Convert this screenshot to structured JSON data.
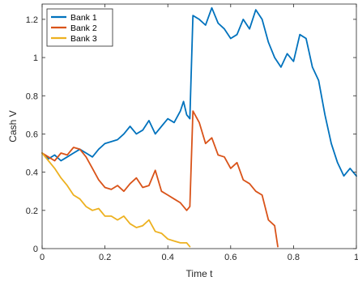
{
  "chart_data": {
    "type": "line",
    "title": "",
    "xlabel": "Time t",
    "ylabel": "Cash V",
    "xlim": [
      0,
      1
    ],
    "ylim": [
      0,
      1.28
    ],
    "x_ticks": [
      0,
      0.2,
      0.4,
      0.6,
      0.8,
      1
    ],
    "x_tick_labels": [
      "0",
      "0.2",
      "0.4",
      "0.6",
      "0.8",
      "1"
    ],
    "y_ticks": [
      0,
      0.2,
      0.4,
      0.6,
      0.8,
      1,
      1.2
    ],
    "y_tick_labels": [
      "0",
      "0.2",
      "0.4",
      "0.6",
      "0.8",
      "1",
      "1.2"
    ],
    "grid": false,
    "legend_position": "top-left",
    "series": [
      {
        "name": "Bank 1",
        "color": "#0072BD",
        "x": [
          0,
          0.02,
          0.04,
          0.06,
          0.08,
          0.1,
          0.12,
          0.14,
          0.16,
          0.18,
          0.2,
          0.22,
          0.24,
          0.26,
          0.28,
          0.3,
          0.32,
          0.34,
          0.36,
          0.38,
          0.4,
          0.42,
          0.44,
          0.45,
          0.46,
          0.47,
          0.48,
          0.5,
          0.52,
          0.54,
          0.56,
          0.58,
          0.6,
          0.62,
          0.64,
          0.66,
          0.68,
          0.7,
          0.72,
          0.74,
          0.76,
          0.78,
          0.8,
          0.82,
          0.84,
          0.86,
          0.88,
          0.9,
          0.92,
          0.94,
          0.96,
          0.98,
          1.0
        ],
        "values": [
          0.5,
          0.47,
          0.49,
          0.46,
          0.48,
          0.5,
          0.52,
          0.5,
          0.48,
          0.52,
          0.55,
          0.56,
          0.57,
          0.6,
          0.64,
          0.6,
          0.62,
          0.67,
          0.6,
          0.64,
          0.68,
          0.66,
          0.72,
          0.77,
          0.7,
          0.68,
          1.22,
          1.2,
          1.17,
          1.26,
          1.18,
          1.15,
          1.1,
          1.12,
          1.2,
          1.15,
          1.25,
          1.2,
          1.08,
          1.0,
          0.95,
          1.02,
          0.98,
          1.12,
          1.1,
          0.95,
          0.88,
          0.7,
          0.55,
          0.45,
          0.38,
          0.42,
          0.38
        ]
      },
      {
        "name": "Bank 2",
        "color": "#D95319",
        "x": [
          0,
          0.02,
          0.04,
          0.06,
          0.08,
          0.1,
          0.12,
          0.14,
          0.16,
          0.18,
          0.2,
          0.22,
          0.24,
          0.26,
          0.28,
          0.3,
          0.32,
          0.34,
          0.36,
          0.38,
          0.4,
          0.42,
          0.44,
          0.46,
          0.47,
          0.48,
          0.5,
          0.52,
          0.54,
          0.56,
          0.58,
          0.6,
          0.62,
          0.64,
          0.66,
          0.68,
          0.7,
          0.72,
          0.74,
          0.75
        ],
        "values": [
          0.5,
          0.48,
          0.46,
          0.5,
          0.49,
          0.53,
          0.52,
          0.48,
          0.42,
          0.36,
          0.32,
          0.31,
          0.33,
          0.3,
          0.34,
          0.37,
          0.32,
          0.33,
          0.41,
          0.3,
          0.28,
          0.26,
          0.24,
          0.2,
          0.22,
          0.72,
          0.66,
          0.55,
          0.58,
          0.49,
          0.48,
          0.42,
          0.45,
          0.36,
          0.34,
          0.3,
          0.28,
          0.15,
          0.12,
          0.01
        ]
      },
      {
        "name": "Bank 3",
        "color": "#EDB120",
        "x": [
          0,
          0.02,
          0.04,
          0.06,
          0.08,
          0.1,
          0.12,
          0.14,
          0.16,
          0.18,
          0.2,
          0.22,
          0.24,
          0.26,
          0.28,
          0.3,
          0.32,
          0.34,
          0.36,
          0.38,
          0.4,
          0.42,
          0.44,
          0.46,
          0.47
        ],
        "values": [
          0.5,
          0.46,
          0.42,
          0.37,
          0.33,
          0.28,
          0.26,
          0.22,
          0.2,
          0.21,
          0.17,
          0.17,
          0.15,
          0.17,
          0.13,
          0.11,
          0.12,
          0.15,
          0.09,
          0.08,
          0.05,
          0.04,
          0.03,
          0.03,
          0.01
        ]
      }
    ]
  }
}
